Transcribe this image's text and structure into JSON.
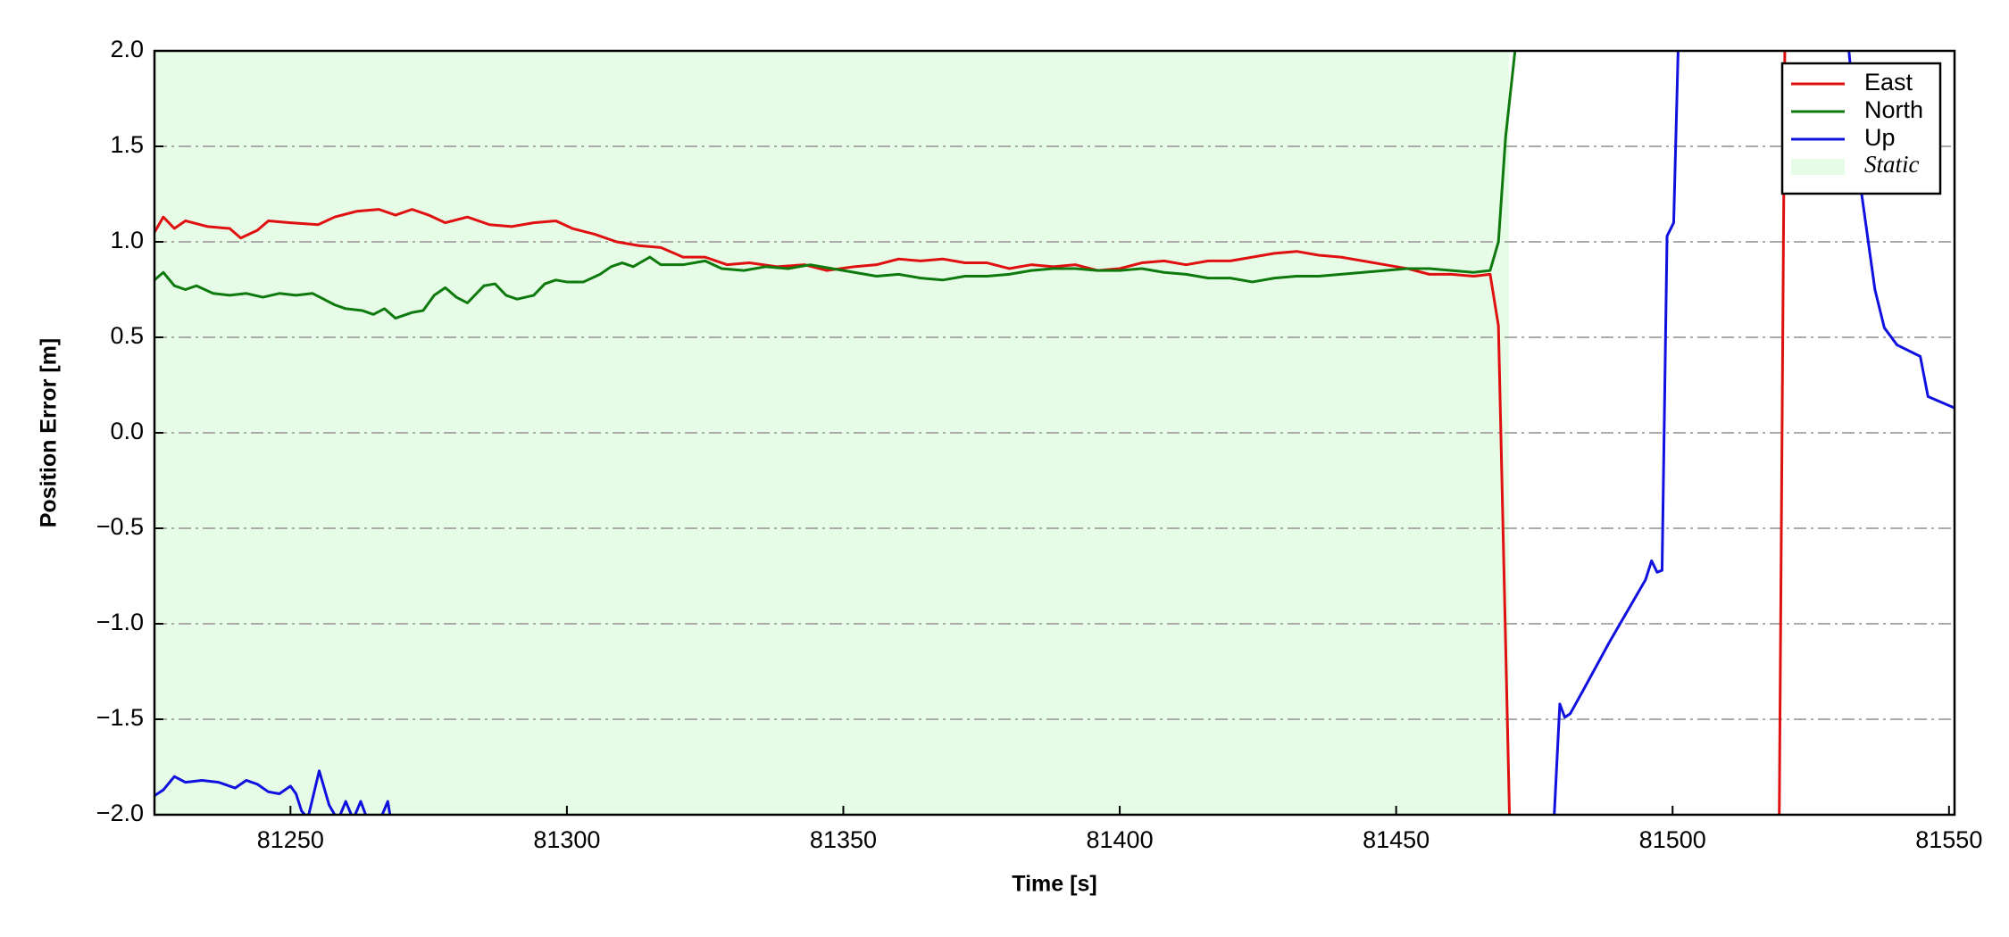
{
  "chart_data": {
    "type": "line",
    "xlabel": "Time [s]",
    "ylabel": "Position Error [m]",
    "xlim": [
      81225.4,
      81551
    ],
    "xticks": [
      81250,
      81300,
      81350,
      81400,
      81450,
      81500,
      81550
    ],
    "ylim": [
      -2,
      2
    ],
    "yticks": [
      {
        "value": -2,
        "label": "−2.0"
      },
      {
        "value": -1.5,
        "label": "−1.5"
      },
      {
        "value": -1,
        "label": "−1.0"
      },
      {
        "value": -0.5,
        "label": "−0.5"
      },
      {
        "value": 0,
        "label": "0.0"
      },
      {
        "value": 0.5,
        "label": "0.5"
      },
      {
        "value": 1,
        "label": "1.0"
      },
      {
        "value": 1.5,
        "label": "1.5"
      },
      {
        "value": 2,
        "label": "2.0"
      }
    ],
    "grid": true,
    "legend": "upper right",
    "spans": [
      {
        "name": "Static",
        "start": 81225.4,
        "end": 81470.4,
        "color": "#e6fce6"
      }
    ],
    "series": [
      {
        "name": "East",
        "color": "#e01010",
        "x": [
          81225.4,
          81227,
          81229,
          81231,
          81235,
          81239,
          81241,
          81244,
          81246,
          81250,
          81255,
          81258,
          81262,
          81266,
          81269,
          81272,
          81275,
          81278,
          81282,
          81286,
          81290,
          81294,
          81298,
          81301,
          81305,
          81309,
          81313,
          81317,
          81321,
          81325,
          81329,
          81333,
          81338,
          81343,
          81347,
          81352,
          81356,
          81360,
          81364,
          81368,
          81372,
          81376,
          81380,
          81384,
          81388,
          81392,
          81396,
          81400,
          81404,
          81408,
          81412,
          81416,
          81420,
          81424,
          81428,
          81432,
          81436,
          81440,
          81444,
          81448,
          81452,
          81456,
          81460,
          81464,
          81467,
          81468.5,
          81470.5,
          null,
          81519.3,
          81520.3
        ],
        "values": [
          1.05,
          1.13,
          1.07,
          1.11,
          1.08,
          1.07,
          1.02,
          1.06,
          1.11,
          1.1,
          1.09,
          1.13,
          1.16,
          1.17,
          1.14,
          1.17,
          1.14,
          1.1,
          1.13,
          1.09,
          1.08,
          1.1,
          1.11,
          1.07,
          1.04,
          1.0,
          0.98,
          0.97,
          0.92,
          0.92,
          0.88,
          0.89,
          0.87,
          0.88,
          0.85,
          0.87,
          0.88,
          0.91,
          0.9,
          0.91,
          0.89,
          0.89,
          0.86,
          0.88,
          0.87,
          0.88,
          0.85,
          0.86,
          0.89,
          0.9,
          0.88,
          0.9,
          0.9,
          0.92,
          0.94,
          0.95,
          0.93,
          0.92,
          0.9,
          0.88,
          0.86,
          0.83,
          0.83,
          0.82,
          0.83,
          0.56,
          -2.0,
          null,
          -2.0,
          2.0
        ]
      },
      {
        "name": "North",
        "color": "#0e7a0e",
        "x": [
          81225.4,
          81227,
          81229,
          81231,
          81233,
          81236,
          81239,
          81242,
          81245,
          81248,
          81251,
          81254,
          81256,
          81258,
          81260,
          81263,
          81265,
          81267,
          81269,
          81272,
          81274,
          81276,
          81278,
          81280,
          81282,
          81285,
          81287,
          81289,
          81291,
          81294,
          81296,
          81298,
          81300,
          81303,
          81306,
          81308,
          81310,
          81312,
          81315,
          81317,
          81321,
          81325,
          81328,
          81332,
          81336,
          81340,
          81344,
          81348,
          81352,
          81356,
          81360,
          81364,
          81368,
          81372,
          81376,
          81380,
          81384,
          81388,
          81392,
          81396,
          81400,
          81404,
          81408,
          81412,
          81416,
          81420,
          81424,
          81428,
          81432,
          81436,
          81440,
          81444,
          81448,
          81452,
          81456,
          81460,
          81464,
          81467,
          81468.5,
          81469.8,
          81471.5
        ],
        "values": [
          0.8,
          0.84,
          0.77,
          0.75,
          0.77,
          0.73,
          0.72,
          0.73,
          0.71,
          0.73,
          0.72,
          0.73,
          0.7,
          0.67,
          0.65,
          0.64,
          0.62,
          0.65,
          0.6,
          0.63,
          0.64,
          0.72,
          0.76,
          0.71,
          0.68,
          0.77,
          0.78,
          0.72,
          0.7,
          0.72,
          0.78,
          0.8,
          0.79,
          0.79,
          0.83,
          0.87,
          0.89,
          0.87,
          0.92,
          0.88,
          0.88,
          0.9,
          0.86,
          0.85,
          0.87,
          0.86,
          0.88,
          0.86,
          0.84,
          0.82,
          0.83,
          0.81,
          0.8,
          0.82,
          0.82,
          0.83,
          0.85,
          0.86,
          0.86,
          0.85,
          0.85,
          0.86,
          0.84,
          0.83,
          0.81,
          0.81,
          0.79,
          0.81,
          0.82,
          0.82,
          0.83,
          0.84,
          0.85,
          0.86,
          0.86,
          0.85,
          0.84,
          0.85,
          1.0,
          1.55,
          2.0
        ]
      },
      {
        "name": "Up",
        "color": "#1010e0",
        "x": [
          81225.4,
          81227,
          81229,
          81231,
          81234,
          81237,
          81240,
          81242,
          81244,
          81246,
          81248,
          81250,
          81251,
          81252,
          81252.6,
          null,
          81253.3,
          81255.2,
          81257,
          81258,
          null,
          81259,
          81260,
          81261,
          null,
          81261.7,
          81262.7,
          81263.6,
          null,
          81266.6,
          81267.6,
          81268,
          null,
          81478.6,
          81479.6,
          81480.5,
          81481.5,
          81483.8,
          81488.5,
          81495.1,
          81496.2,
          81497.2,
          81498.1,
          81499,
          81500.2,
          81501,
          null,
          81531.9,
          81534.2,
          81536.6,
          81538.3,
          81540.6,
          81544.8,
          81546.2,
          81551
        ],
        "values": [
          -1.9,
          -1.87,
          -1.8,
          -1.83,
          -1.82,
          -1.83,
          -1.86,
          -1.82,
          -1.84,
          -1.88,
          -1.89,
          -1.85,
          -1.89,
          -1.98,
          -2.0,
          null,
          -2.0,
          -1.77,
          -1.95,
          -2.0,
          null,
          -2.0,
          -1.93,
          -2.0,
          null,
          -2.0,
          -1.93,
          -2.0,
          null,
          -2.0,
          -1.93,
          -2.0,
          null,
          -2.0,
          -1.42,
          -1.49,
          -1.47,
          -1.35,
          -1.1,
          -0.77,
          -0.67,
          -0.73,
          -0.72,
          1.03,
          1.1,
          2.0,
          null,
          2.0,
          1.25,
          0.75,
          0.55,
          0.46,
          0.4,
          0.19,
          0.13
        ]
      }
    ]
  }
}
